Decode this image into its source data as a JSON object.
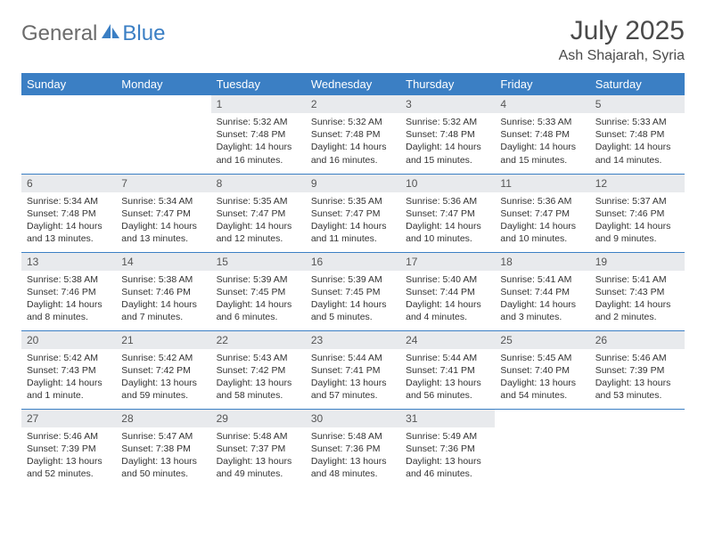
{
  "brand": {
    "part1": "General",
    "part2": "Blue"
  },
  "title": "July 2025",
  "location": "Ash Shajarah, Syria",
  "colors": {
    "header_bg": "#3b7fc4",
    "header_text": "#ffffff",
    "daynum_bg": "#e8eaed",
    "border": "#3b7fc4",
    "brand_gray": "#6b6b6b",
    "brand_blue": "#3b7fc4"
  },
  "weekdays": [
    "Sunday",
    "Monday",
    "Tuesday",
    "Wednesday",
    "Thursday",
    "Friday",
    "Saturday"
  ],
  "first_weekday_index": 2,
  "days": [
    {
      "n": 1,
      "sunrise": "5:32 AM",
      "sunset": "7:48 PM",
      "daylight": "14 hours and 16 minutes."
    },
    {
      "n": 2,
      "sunrise": "5:32 AM",
      "sunset": "7:48 PM",
      "daylight": "14 hours and 16 minutes."
    },
    {
      "n": 3,
      "sunrise": "5:32 AM",
      "sunset": "7:48 PM",
      "daylight": "14 hours and 15 minutes."
    },
    {
      "n": 4,
      "sunrise": "5:33 AM",
      "sunset": "7:48 PM",
      "daylight": "14 hours and 15 minutes."
    },
    {
      "n": 5,
      "sunrise": "5:33 AM",
      "sunset": "7:48 PM",
      "daylight": "14 hours and 14 minutes."
    },
    {
      "n": 6,
      "sunrise": "5:34 AM",
      "sunset": "7:48 PM",
      "daylight": "14 hours and 13 minutes."
    },
    {
      "n": 7,
      "sunrise": "5:34 AM",
      "sunset": "7:47 PM",
      "daylight": "14 hours and 13 minutes."
    },
    {
      "n": 8,
      "sunrise": "5:35 AM",
      "sunset": "7:47 PM",
      "daylight": "14 hours and 12 minutes."
    },
    {
      "n": 9,
      "sunrise": "5:35 AM",
      "sunset": "7:47 PM",
      "daylight": "14 hours and 11 minutes."
    },
    {
      "n": 10,
      "sunrise": "5:36 AM",
      "sunset": "7:47 PM",
      "daylight": "14 hours and 10 minutes."
    },
    {
      "n": 11,
      "sunrise": "5:36 AM",
      "sunset": "7:47 PM",
      "daylight": "14 hours and 10 minutes."
    },
    {
      "n": 12,
      "sunrise": "5:37 AM",
      "sunset": "7:46 PM",
      "daylight": "14 hours and 9 minutes."
    },
    {
      "n": 13,
      "sunrise": "5:38 AM",
      "sunset": "7:46 PM",
      "daylight": "14 hours and 8 minutes."
    },
    {
      "n": 14,
      "sunrise": "5:38 AM",
      "sunset": "7:46 PM",
      "daylight": "14 hours and 7 minutes."
    },
    {
      "n": 15,
      "sunrise": "5:39 AM",
      "sunset": "7:45 PM",
      "daylight": "14 hours and 6 minutes."
    },
    {
      "n": 16,
      "sunrise": "5:39 AM",
      "sunset": "7:45 PM",
      "daylight": "14 hours and 5 minutes."
    },
    {
      "n": 17,
      "sunrise": "5:40 AM",
      "sunset": "7:44 PM",
      "daylight": "14 hours and 4 minutes."
    },
    {
      "n": 18,
      "sunrise": "5:41 AM",
      "sunset": "7:44 PM",
      "daylight": "14 hours and 3 minutes."
    },
    {
      "n": 19,
      "sunrise": "5:41 AM",
      "sunset": "7:43 PM",
      "daylight": "14 hours and 2 minutes."
    },
    {
      "n": 20,
      "sunrise": "5:42 AM",
      "sunset": "7:43 PM",
      "daylight": "14 hours and 1 minute."
    },
    {
      "n": 21,
      "sunrise": "5:42 AM",
      "sunset": "7:42 PM",
      "daylight": "13 hours and 59 minutes."
    },
    {
      "n": 22,
      "sunrise": "5:43 AM",
      "sunset": "7:42 PM",
      "daylight": "13 hours and 58 minutes."
    },
    {
      "n": 23,
      "sunrise": "5:44 AM",
      "sunset": "7:41 PM",
      "daylight": "13 hours and 57 minutes."
    },
    {
      "n": 24,
      "sunrise": "5:44 AM",
      "sunset": "7:41 PM",
      "daylight": "13 hours and 56 minutes."
    },
    {
      "n": 25,
      "sunrise": "5:45 AM",
      "sunset": "7:40 PM",
      "daylight": "13 hours and 54 minutes."
    },
    {
      "n": 26,
      "sunrise": "5:46 AM",
      "sunset": "7:39 PM",
      "daylight": "13 hours and 53 minutes."
    },
    {
      "n": 27,
      "sunrise": "5:46 AM",
      "sunset": "7:39 PM",
      "daylight": "13 hours and 52 minutes."
    },
    {
      "n": 28,
      "sunrise": "5:47 AM",
      "sunset": "7:38 PM",
      "daylight": "13 hours and 50 minutes."
    },
    {
      "n": 29,
      "sunrise": "5:48 AM",
      "sunset": "7:37 PM",
      "daylight": "13 hours and 49 minutes."
    },
    {
      "n": 30,
      "sunrise": "5:48 AM",
      "sunset": "7:36 PM",
      "daylight": "13 hours and 48 minutes."
    },
    {
      "n": 31,
      "sunrise": "5:49 AM",
      "sunset": "7:36 PM",
      "daylight": "13 hours and 46 minutes."
    }
  ],
  "labels": {
    "sunrise": "Sunrise:",
    "sunset": "Sunset:",
    "daylight": "Daylight:"
  }
}
